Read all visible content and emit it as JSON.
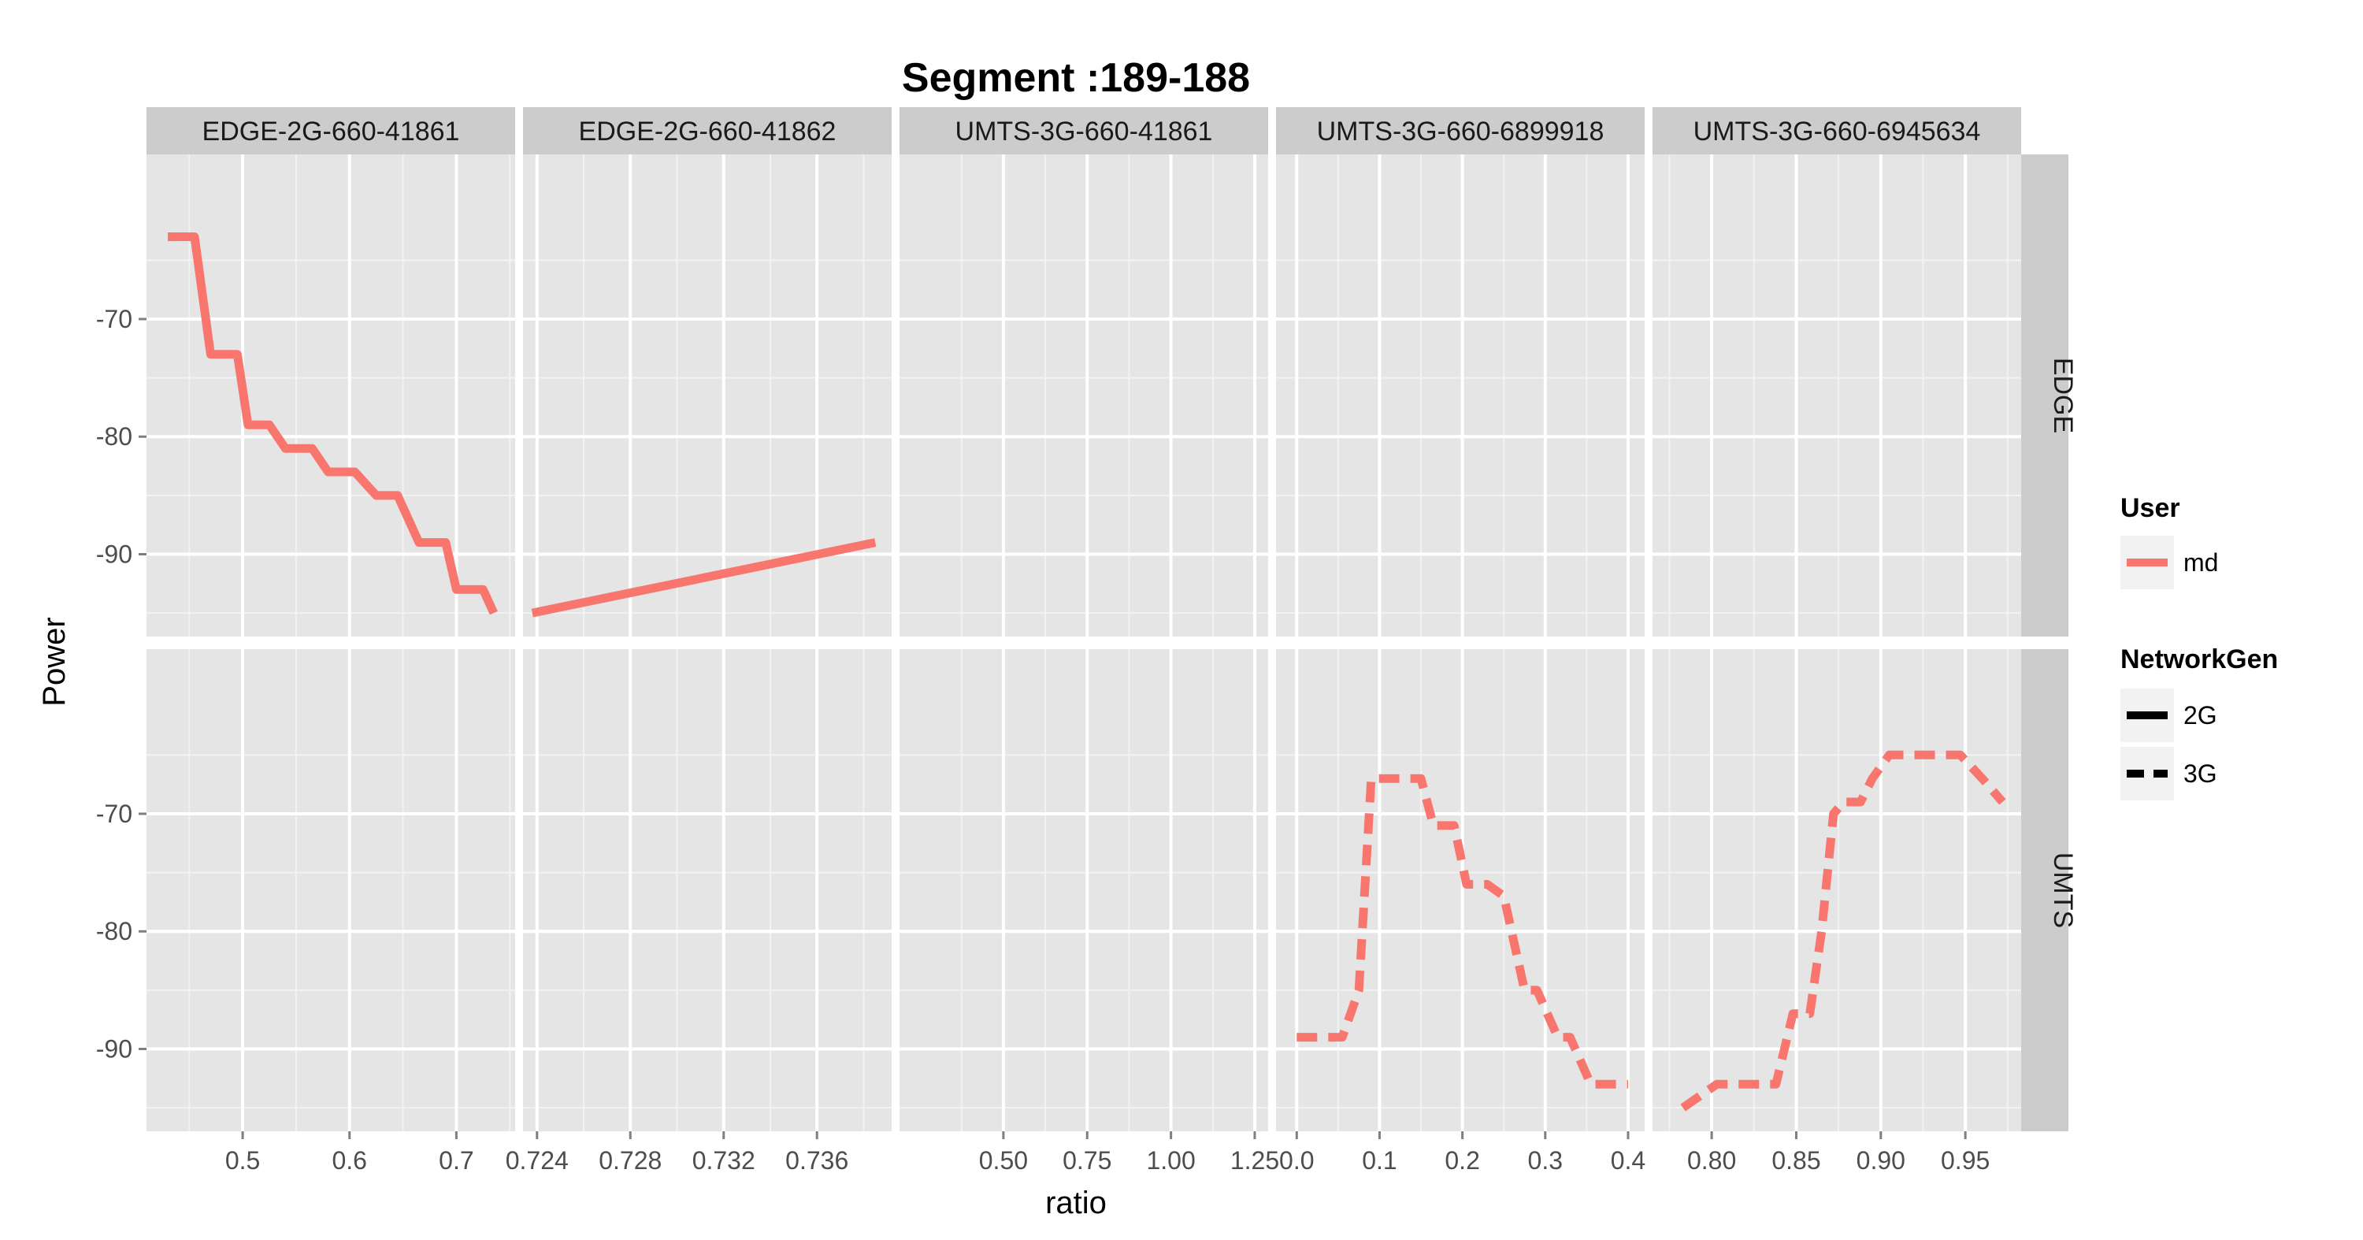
{
  "chart_data": {
    "type": "line",
    "title": "Segment :189-188",
    "xlabel": "ratio",
    "ylabel": "Power",
    "grid": true,
    "colors": {
      "md": "#F8766D",
      "panel_bg": "#E5E5E5",
      "strip_bg": "#CCCCCC",
      "grid": "#FFFFFF"
    },
    "facet_rows": [
      {
        "label": "EDGE",
        "ylim": [
          -97,
          -56
        ],
        "y_ticks": [
          -70,
          -80,
          -90
        ]
      },
      {
        "label": "UMTS",
        "ylim": [
          -97,
          -56
        ],
        "y_ticks": [
          -70,
          -80,
          -90
        ]
      }
    ],
    "facet_cols": [
      {
        "label": "EDGE-2G-660-41861",
        "xlim": [
          0.41,
          0.755
        ],
        "x_ticks": [
          0.5,
          0.6,
          0.7
        ],
        "x_tick_labels": [
          "0.5",
          "0.6",
          "0.7"
        ]
      },
      {
        "label": "EDGE-2G-660-41862",
        "xlim": [
          0.7234,
          0.7392
        ],
        "x_ticks": [
          0.724,
          0.728,
          0.732,
          0.736
        ],
        "x_tick_labels": [
          "0.724",
          "0.728",
          "0.732",
          "0.736"
        ]
      },
      {
        "label": "UMTS-3G-660-41861",
        "xlim": [
          0.19,
          1.29
        ],
        "x_ticks": [
          0.5,
          0.75,
          1.0,
          1.25
        ],
        "x_tick_labels": [
          "0.50",
          "0.75",
          "1.00",
          "1.25"
        ]
      },
      {
        "label": "UMTS-3G-660-6899918",
        "xlim": [
          -0.025,
          0.42
        ],
        "x_ticks": [
          0.0,
          0.1,
          0.2,
          0.3,
          0.4
        ],
        "x_tick_labels": [
          "0.0",
          "0.1",
          "0.2",
          "0.3",
          "0.4"
        ]
      },
      {
        "label": "UMTS-3G-660-6945634",
        "xlim": [
          0.765,
          0.983
        ],
        "x_ticks": [
          0.8,
          0.85,
          0.9,
          0.95
        ],
        "x_tick_labels": [
          "0.80",
          "0.85",
          "0.90",
          "0.95"
        ]
      }
    ],
    "series": [
      {
        "row": 0,
        "col": 0,
        "user": "md",
        "network_gen": "2G",
        "x": [
          0.43,
          0.455,
          0.47,
          0.495,
          0.505,
          0.525,
          0.54,
          0.565,
          0.58,
          0.605,
          0.625,
          0.645,
          0.665,
          0.69,
          0.7,
          0.725,
          0.735
        ],
        "y": [
          -63,
          -63,
          -73,
          -73,
          -79,
          -79,
          -81,
          -81,
          -83,
          -83,
          -85,
          -85,
          -89,
          -89,
          -93,
          -93,
          -95
        ]
      },
      {
        "row": 0,
        "col": 1,
        "user": "md",
        "network_gen": "2G",
        "x": [
          0.7238,
          0.7385
        ],
        "y": [
          -95,
          -89
        ]
      },
      {
        "row": 1,
        "col": 3,
        "user": "md",
        "network_gen": "3G",
        "x": [
          0.0,
          0.055,
          0.075,
          0.09,
          0.1,
          0.15,
          0.165,
          0.19,
          0.205,
          0.23,
          0.25,
          0.275,
          0.29,
          0.315,
          0.33,
          0.355,
          0.365,
          0.4
        ],
        "y": [
          -89,
          -89,
          -85,
          -67,
          -67,
          -67,
          -71,
          -71,
          -76,
          -76,
          -77,
          -85,
          -85,
          -89,
          -89,
          -93,
          -93,
          -93
        ]
      },
      {
        "row": 1,
        "col": 4,
        "user": "md",
        "network_gen": "3G",
        "x": [
          0.783,
          0.793,
          0.803,
          0.825,
          0.838,
          0.848,
          0.858,
          0.865,
          0.872,
          0.878,
          0.888,
          0.895,
          0.905,
          0.93,
          0.947,
          0.96,
          0.972
        ],
        "y": [
          -95,
          -94,
          -93,
          -93,
          -93,
          -87,
          -87,
          -80,
          -70,
          -69,
          -69,
          -67,
          -65,
          -65,
          -65,
          -67,
          -69
        ]
      }
    ],
    "legend": {
      "position": "right",
      "user": {
        "title": "User",
        "entries": [
          {
            "label": "md",
            "color": "#F8766D"
          }
        ]
      },
      "network_gen": {
        "title": "NetworkGen",
        "entries": [
          {
            "label": "2G",
            "linetype": "solid"
          },
          {
            "label": "3G",
            "linetype": "dashed"
          }
        ]
      }
    }
  }
}
